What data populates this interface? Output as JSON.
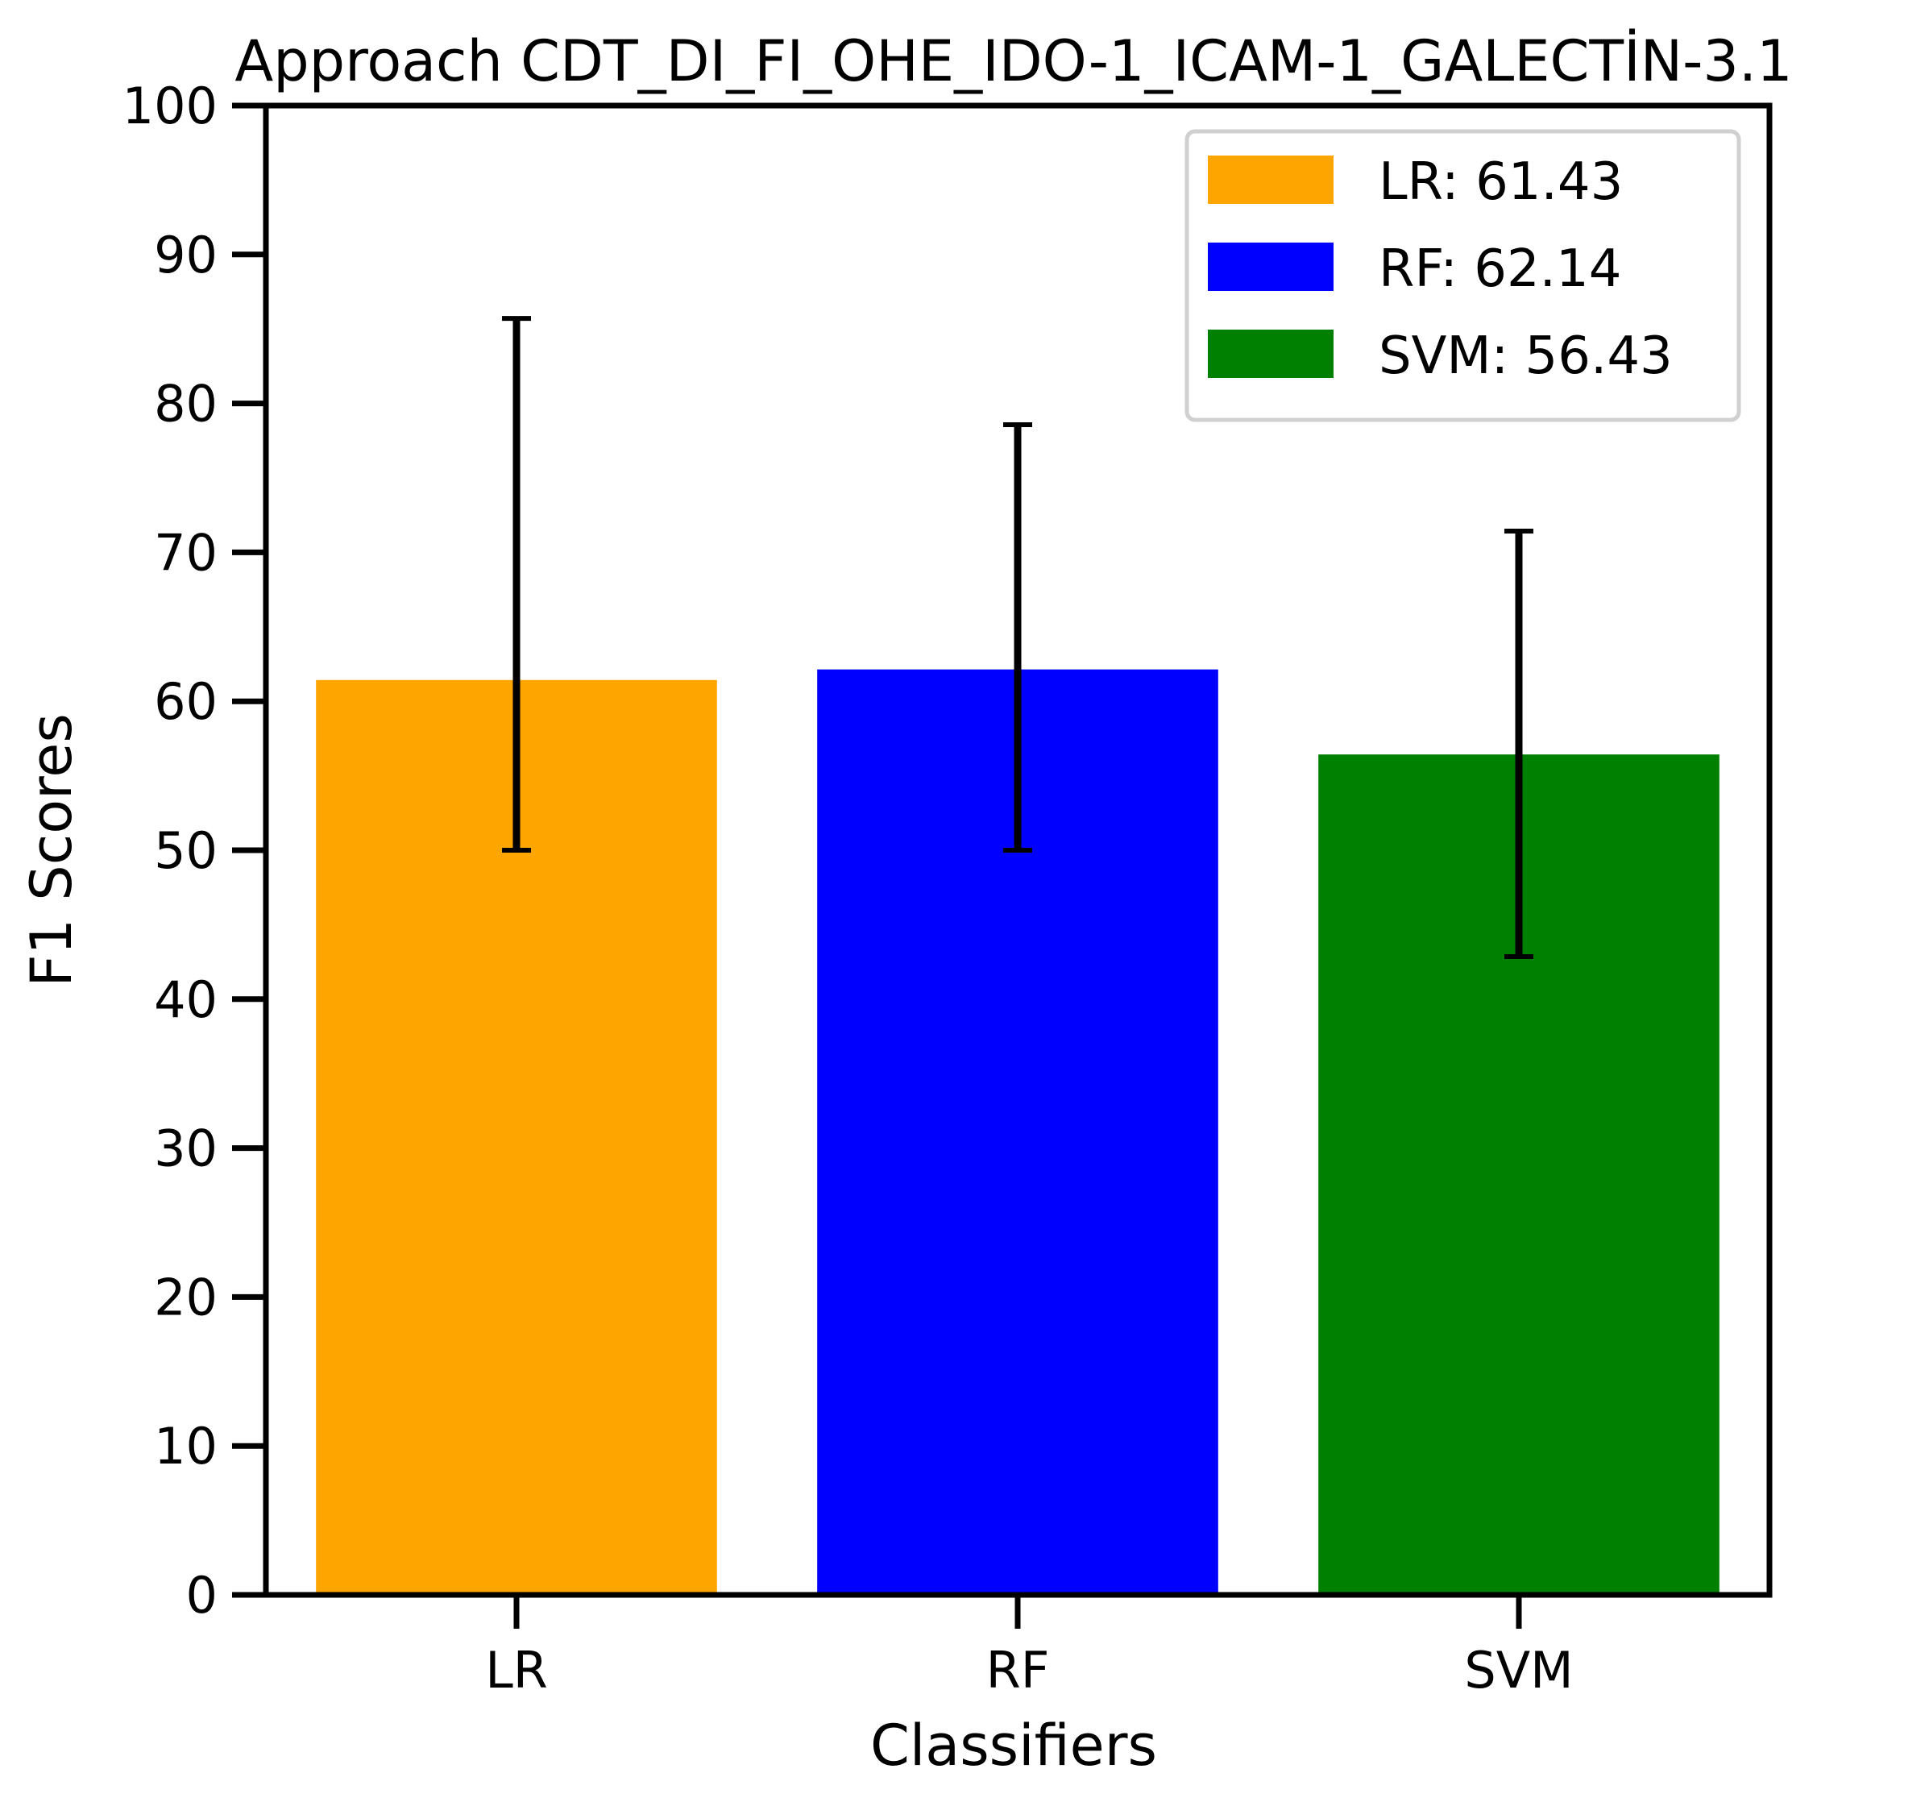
{
  "chart_data": {
    "type": "bar",
    "title": "Approach CDT_DI_FI_OHE_IDO-1_ICAM-1_GALECTİN-3.1",
    "xlabel": "Classifiers",
    "ylabel": "F1 Scores",
    "ylim": [
      0,
      100
    ],
    "yticks": [
      0,
      10,
      20,
      30,
      40,
      50,
      60,
      70,
      80,
      90,
      100
    ],
    "grid": false,
    "legend_position": "top-right",
    "categories": [
      "LR",
      "RF",
      "SVM"
    ],
    "values": [
      61.43,
      62.14,
      56.43
    ],
    "error_low": [
      50.0,
      50.0,
      42.86
    ],
    "error_high": [
      85.71,
      78.57,
      71.43
    ],
    "colors": [
      "#FFA500",
      "#0000FF",
      "#008000"
    ],
    "legend": [
      {
        "label": "LR: 61.43",
        "color": "#FFA500"
      },
      {
        "label": "RF: 62.14",
        "color": "#0000FF"
      },
      {
        "label": "SVM: 56.43",
        "color": "#008000"
      }
    ]
  }
}
